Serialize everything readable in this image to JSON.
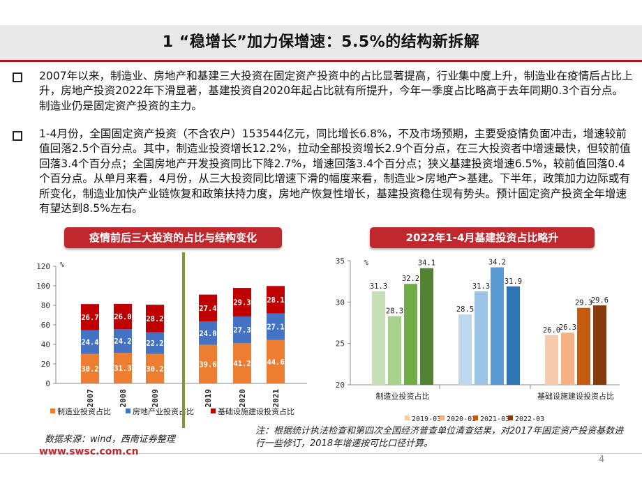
{
  "slide": {
    "title": "1 “稳增长”加力保增速：5.5%的结构新拆解",
    "bullets": [
      "2007年以来，制造业、房地产和基建三大投资在固定资产投资中的占比显著提高，行业集中度上升，制造业在疫情后占比上升，房地产投资2022年下滑显著，基建投资自2020年起占比就有所提升，今年一季度占比略高于去年同期0.3个百分点。制造业仍是固定资产投资的主力。",
      "1-4月份，全国固定资产投资（不含农户）153544亿元，同比增长6.8%，不及市场预期，主要受疫情负面冲击，增速较前值回落2.5个百分点。其中，制造业投资增长12.2%，拉动全部投资增长2.9个百分点，在三大投资者中增速最快，但较前值回落3.4个百分点；全国房地产开发投资同比下降2.7%，增速回落3.4个百分点；狭义基建投资增速6.5%，较前值回落0.4个百分点。从单月来看，4月份，从三大投资同比增速下滑的幅度来看，制造业>房地产>基建。下半年，政策加力边际或有所变化，制造业加快产业链恢复和政策扶持力度，房地产恢复性增长，基建投资稳住现有势头。预计固定资产投资全年增速有望达到8.5%左右。"
    ],
    "source": "数据来源：wind，西南证券整理",
    "note": "注：根据统计执法检查和第四次全国经济普查单位清查结果，对2017年固定资产投资基数进行一些修订，2018年增速按可比口径计算。",
    "url": "www.swsc.com.cn",
    "page_number": "4"
  },
  "chart_data": [
    {
      "type": "bar",
      "stacked": true,
      "title": "疫情前后三大投资的占比与结构变化",
      "unit": "%",
      "categories": [
        "2007",
        "2008",
        "2009",
        "2019",
        "2020",
        "2021"
      ],
      "series": [
        {
          "name": "制造业投资占比",
          "color": "#ed7d31",
          "values": [
            30.2,
            31.3,
            30.2,
            39.6,
            41.2,
            44.6
          ]
        },
        {
          "name": "房地产业投资占比",
          "color": "#4472c4",
          "values": [
            24.4,
            24.2,
            22.2,
            24.0,
            27.3,
            27.1
          ]
        },
        {
          "name": "基础设施建设投资占比",
          "color": "#c00000",
          "values": [
            26.7,
            26.0,
            28.2,
            27.4,
            29.3,
            28.1
          ]
        }
      ],
      "ylim": [
        0,
        120
      ],
      "yticks": [
        "0",
        "20",
        "40",
        "60",
        "80",
        "100",
        "120"
      ],
      "legend": "bottom",
      "grid": false
    },
    {
      "type": "bar",
      "title": "2022年1-4月基建投资占比略升",
      "unit": "%",
      "categories": [
        "制造业投资占比",
        "",
        "基础设施建设投资占比"
      ],
      "series": [
        {
          "name": "2019-03",
          "color": "#c5e0b4",
          "values": [
            31.3,
            28.5,
            26.0
          ]
        },
        {
          "name": "2020-03",
          "color": "#9dc3e6",
          "values": [
            28.3,
            31.3,
            26.3
          ]
        },
        {
          "name": "2021-03",
          "color": "#548235",
          "values": [
            32.2,
            34.2,
            29.3
          ]
        },
        {
          "name": "2022-03",
          "color": "#2e75b6",
          "values": [
            34.1,
            31.9,
            29.6
          ]
        }
      ],
      "group_colors": [
        [
          "#c5e0b4",
          "#a9d18e",
          "#70ad47",
          "#548235"
        ],
        [
          "#bdd7ee",
          "#9dc3e6",
          "#5b9bd5",
          "#2e75b6"
        ],
        [
          "#f8cbad",
          "#f4b183",
          "#c55a11",
          "#843c0c"
        ]
      ],
      "legend_colors": [
        "#f8cbad",
        "#f4b183",
        "#c55a11",
        "#843c0c"
      ],
      "ylim": [
        20,
        35
      ],
      "yticks": [
        "20",
        "25",
        "30",
        "35"
      ],
      "legend": "bottom",
      "grid": false
    }
  ]
}
